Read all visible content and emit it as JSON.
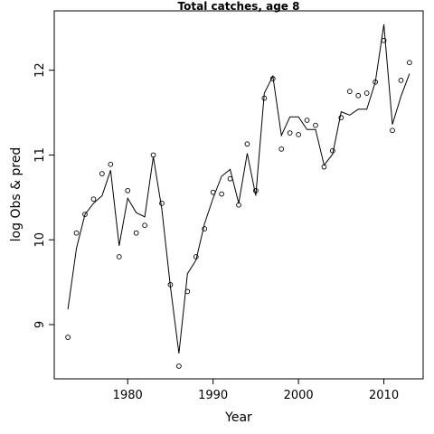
{
  "chart_data": {
    "type": "line",
    "title": "Total catches, age 8",
    "xlabel": "Year",
    "ylabel": "log Obs & pred",
    "xlim": [
      1971.4,
      2014.6
    ],
    "ylim": [
      8.36,
      12.7
    ],
    "x_ticks": [
      1980,
      1990,
      2000,
      2010
    ],
    "y_ticks": [
      9,
      10,
      11,
      12
    ],
    "grid": false,
    "legend": "none",
    "line_color": "#000000",
    "years": [
      1973,
      1974,
      1975,
      1976,
      1977,
      1978,
      1979,
      1980,
      1981,
      1982,
      1983,
      1984,
      1985,
      1986,
      1987,
      1988,
      1989,
      1990,
      1991,
      1992,
      1993,
      1994,
      1995,
      1996,
      1997,
      1998,
      1999,
      2000,
      2001,
      2002,
      2003,
      2004,
      2005,
      2006,
      2007,
      2008,
      2009,
      2010,
      2011,
      2012,
      2013
    ],
    "series": [
      {
        "style": "points",
        "marker": "open-circle",
        "values": [
          8.85,
          10.08,
          10.3,
          10.48,
          10.78,
          10.89,
          9.8,
          10.58,
          10.08,
          10.17,
          11.0,
          10.43,
          9.47,
          8.51,
          9.39,
          9.8,
          10.13,
          10.56,
          10.54,
          10.72,
          10.41,
          11.13,
          10.58,
          11.67,
          11.9,
          11.07,
          11.26,
          11.24,
          11.41,
          11.35,
          10.86,
          11.05,
          11.44,
          11.75,
          11.7,
          11.73,
          11.86,
          12.35,
          11.29,
          11.88,
          12.09
        ]
      },
      {
        "style": "line",
        "values": [
          9.18,
          9.9,
          10.3,
          10.43,
          10.52,
          10.82,
          9.93,
          10.49,
          10.32,
          10.27,
          10.98,
          10.36,
          9.45,
          8.66,
          9.6,
          9.76,
          10.19,
          10.49,
          10.75,
          10.83,
          10.43,
          11.02,
          10.52,
          11.73,
          11.93,
          11.23,
          11.45,
          11.45,
          11.3,
          11.3,
          10.88,
          11.01,
          11.51,
          11.47,
          11.54,
          11.54,
          11.86,
          12.54,
          11.36,
          11.69,
          11.96
        ]
      }
    ]
  }
}
